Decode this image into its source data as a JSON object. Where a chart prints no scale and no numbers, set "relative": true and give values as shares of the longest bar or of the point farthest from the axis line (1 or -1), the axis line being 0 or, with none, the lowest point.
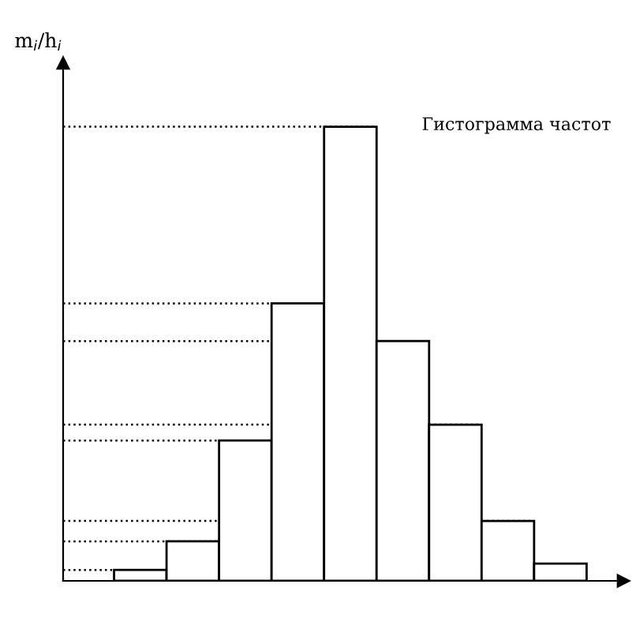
{
  "chart_data": {
    "type": "bar",
    "title": "Гистограмма частот",
    "ylabel": "m$_{i}$/h$_{i}$",
    "relative": true,
    "categories": [
      null,
      null,
      null,
      null,
      null,
      null,
      null,
      null,
      null
    ],
    "values": [
      0.024,
      0.087,
      0.309,
      0.611,
      1,
      0.528,
      0.344,
      0.132,
      0.038
    ],
    "color": "#ffffff",
    "grid": false,
    "ref_lines": [
      {
        "axis": "y",
        "value": 0.024,
        "line_style": "dotted"
      },
      {
        "axis": "y",
        "value": 0.087,
        "line_style": "dotted"
      },
      {
        "axis": "y",
        "value": 0.132,
        "line_style": "dotted"
      },
      {
        "axis": "y",
        "value": 0.309,
        "line_style": "dotted"
      },
      {
        "axis": "y",
        "value": 0.344,
        "line_style": "dotted"
      },
      {
        "axis": "y",
        "value": 0.528,
        "line_style": "dotted"
      },
      {
        "axis": "y",
        "value": 0.611,
        "line_style": "dotted"
      },
      {
        "axis": "y",
        "value": 1,
        "line_style": "dotted"
      }
    ]
  }
}
